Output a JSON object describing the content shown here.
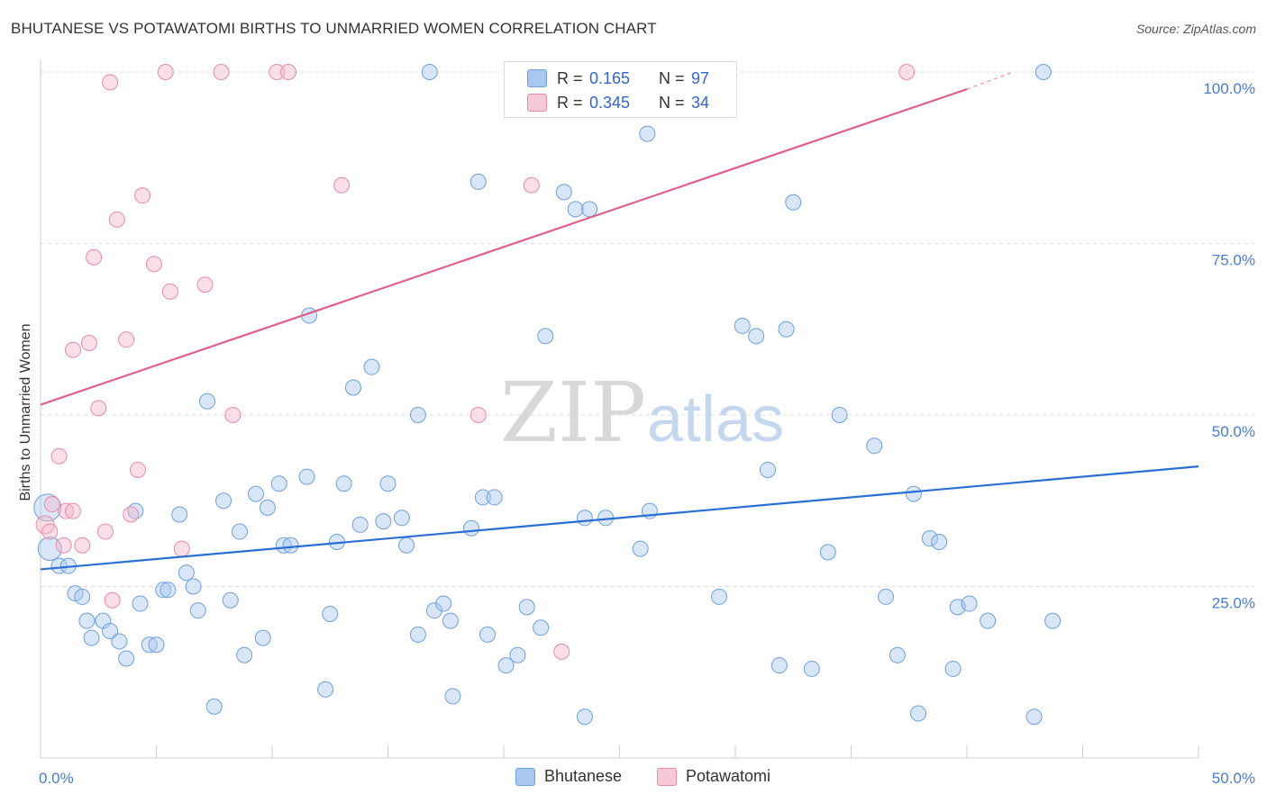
{
  "title": "BHUTANESE VS POTAWATOMI BIRTHS TO UNMARRIED WOMEN CORRELATION CHART",
  "source": "Source: ZipAtlas.com",
  "watermark": {
    "zip": "ZIP",
    "atlas": "atlas"
  },
  "legend": {
    "rows": [
      {
        "r_label": "R =",
        "r_value": "0.165",
        "n_label": "N =",
        "n_value": "97",
        "color": "#a9c8f0"
      },
      {
        "r_label": "R =",
        "r_value": "0.345",
        "n_label": "N =",
        "n_value": "34",
        "color": "#f6b9cb"
      }
    ]
  },
  "bottom_legend": {
    "series1": "Bhutanese",
    "series2": "Potawatomi"
  },
  "chart_data": {
    "type": "scatter",
    "title": "BHUTANESE VS POTAWATOMI BIRTHS TO UNMARRIED WOMEN CORRELATION CHART",
    "xlabel": "",
    "ylabel": "Births to Unmarried Women",
    "xlim": [
      0,
      50
    ],
    "ylim": [
      0,
      100
    ],
    "x_ticks_labels": [
      "0.0%",
      "50.0%"
    ],
    "y_ticks": [
      25,
      50,
      75,
      100
    ],
    "y_ticks_labels": [
      "25.0%",
      "50.0%",
      "75.0%",
      "100.0%"
    ],
    "grid": true,
    "legend_placement": "top-center",
    "series": [
      {
        "name": "Bhutanese",
        "color": "#a9c8f0",
        "stroke": "#6fa0dc",
        "trend": {
          "x": [
            0,
            50
          ],
          "y": [
            27.5,
            42.5
          ],
          "color": "#2a6fd6"
        },
        "points": [
          [
            0.3,
            36.5
          ],
          [
            0.4,
            30.5
          ],
          [
            0.8,
            28
          ],
          [
            1.2,
            28
          ],
          [
            1.5,
            24
          ],
          [
            1.8,
            23.5
          ],
          [
            2.0,
            20
          ],
          [
            2.2,
            17.5
          ],
          [
            2.7,
            20
          ],
          [
            3.0,
            18.5
          ],
          [
            3.4,
            17
          ],
          [
            3.7,
            14.5
          ],
          [
            4.1,
            36
          ],
          [
            4.3,
            22.5
          ],
          [
            4.7,
            16.5
          ],
          [
            5.0,
            16.5
          ],
          [
            5.3,
            24.5
          ],
          [
            5.5,
            24.5
          ],
          [
            6.0,
            35.5
          ],
          [
            6.3,
            27
          ],
          [
            6.6,
            25
          ],
          [
            6.8,
            21.5
          ],
          [
            7.2,
            52
          ],
          [
            7.5,
            7.5
          ],
          [
            7.9,
            37.5
          ],
          [
            8.2,
            23
          ],
          [
            8.6,
            33
          ],
          [
            8.8,
            15
          ],
          [
            9.3,
            38.5
          ],
          [
            9.6,
            17.5
          ],
          [
            9.8,
            36.5
          ],
          [
            10.3,
            40
          ],
          [
            10.5,
            31
          ],
          [
            10.8,
            31
          ],
          [
            11.5,
            41
          ],
          [
            11.6,
            64.5
          ],
          [
            12.3,
            10
          ],
          [
            12.5,
            21
          ],
          [
            12.8,
            31.5
          ],
          [
            13.1,
            40
          ],
          [
            13.5,
            54
          ],
          [
            13.8,
            34
          ],
          [
            14.3,
            57
          ],
          [
            14.8,
            34.5
          ],
          [
            15.0,
            40
          ],
          [
            15.6,
            35
          ],
          [
            15.8,
            31
          ],
          [
            16.3,
            18
          ],
          [
            16.3,
            50
          ],
          [
            16.8,
            100
          ],
          [
            17.0,
            21.5
          ],
          [
            17.4,
            22.5
          ],
          [
            17.7,
            20
          ],
          [
            17.8,
            9
          ],
          [
            18.6,
            33.5
          ],
          [
            18.9,
            84
          ],
          [
            19.1,
            38
          ],
          [
            19.3,
            18
          ],
          [
            19.6,
            38
          ],
          [
            20.1,
            13.5
          ],
          [
            20.6,
            15
          ],
          [
            21.0,
            22
          ],
          [
            21.6,
            19
          ],
          [
            21.8,
            61.5
          ],
          [
            22.6,
            82.5
          ],
          [
            23.1,
            80
          ],
          [
            23.5,
            35
          ],
          [
            23.5,
            6
          ],
          [
            23.7,
            80
          ],
          [
            24.4,
            35
          ],
          [
            25.9,
            30.5
          ],
          [
            26.2,
            91
          ],
          [
            26.3,
            36
          ],
          [
            29.3,
            23.5
          ],
          [
            30.3,
            63
          ],
          [
            30.9,
            61.5
          ],
          [
            31.4,
            42
          ],
          [
            31.9,
            13.5
          ],
          [
            32.2,
            62.5
          ],
          [
            32.5,
            81
          ],
          [
            33.3,
            13
          ],
          [
            34.0,
            30
          ],
          [
            34.5,
            50
          ],
          [
            36.0,
            45.5
          ],
          [
            36.5,
            23.5
          ],
          [
            37.0,
            15
          ],
          [
            37.7,
            38.5
          ],
          [
            37.9,
            6.5
          ],
          [
            38.4,
            32
          ],
          [
            38.8,
            31.5
          ],
          [
            39.4,
            13
          ],
          [
            39.6,
            22
          ],
          [
            40.1,
            22.5
          ],
          [
            40.9,
            20
          ],
          [
            42.9,
            6
          ],
          [
            43.3,
            100
          ],
          [
            43.7,
            20
          ]
        ]
      },
      {
        "name": "Potawatomi",
        "color": "#f6b9cb",
        "stroke": "#e88aa8",
        "trend": {
          "x": [
            0,
            40
          ],
          "y": [
            51.5,
            97.5
          ],
          "dashed_to": [
            42,
            100
          ],
          "color": "#e0608a"
        },
        "points": [
          [
            0.2,
            34
          ],
          [
            0.4,
            33
          ],
          [
            0.5,
            37
          ],
          [
            0.8,
            44
          ],
          [
            1.0,
            31
          ],
          [
            1.1,
            36
          ],
          [
            1.4,
            36
          ],
          [
            1.4,
            59.5
          ],
          [
            1.8,
            31
          ],
          [
            2.1,
            60.5
          ],
          [
            2.3,
            73
          ],
          [
            2.5,
            51
          ],
          [
            2.8,
            33
          ],
          [
            3.0,
            98.5
          ],
          [
            3.1,
            23
          ],
          [
            3.3,
            78.5
          ],
          [
            3.7,
            61
          ],
          [
            3.9,
            35.5
          ],
          [
            4.2,
            42
          ],
          [
            4.4,
            82
          ],
          [
            4.9,
            72
          ],
          [
            5.4,
            100
          ],
          [
            5.6,
            68
          ],
          [
            6.1,
            30.5
          ],
          [
            7.1,
            69
          ],
          [
            7.8,
            100
          ],
          [
            8.3,
            50
          ],
          [
            10.2,
            100
          ],
          [
            10.7,
            100
          ],
          [
            13.0,
            83.5
          ],
          [
            18.9,
            50
          ],
          [
            21.2,
            83.5
          ],
          [
            22.5,
            15.5
          ],
          [
            37.4,
            100
          ]
        ]
      }
    ]
  }
}
